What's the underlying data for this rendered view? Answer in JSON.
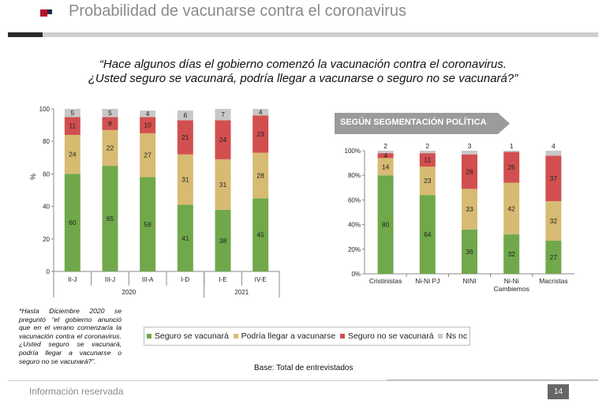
{
  "header": {
    "title": "Probabilidad de vacunarse contra el coronavirus"
  },
  "question": {
    "line1": "“Hace algunos días el gobierno comenzó la vacunación contra el coronavirus.",
    "line2": "¿Usted seguro se vacunará, podría llegar a vacunarse o seguro no se vacunará?”"
  },
  "segment_label": "SEGÚN SEGMENTACIÓN POLÍTICA",
  "footnote": "*Hasta Diciembre 2020 se preguntó “el gobierno anunció que en el verano comenzaría la vacunación contra el coronavirus. ¿Usted seguro se vacunará, podría llegar a vacunarse o seguro no se vacunará?”.",
  "legend": {
    "items": [
      {
        "label": "Seguro se vacunará",
        "color": "#70a84b"
      },
      {
        "label": "Podría llegar a vacunarse",
        "color": "#d7bb73"
      },
      {
        "label": "Seguro no se vacunará",
        "color": "#d24f4f"
      },
      {
        "label": "Ns nc",
        "color": "#c8c8c8"
      }
    ]
  },
  "base_note": "Base: Total de entrevistados",
  "footer": {
    "text": "Información reservada",
    "page_number": "14"
  },
  "colors": {
    "seguro": "#70a84b",
    "podria": "#d7bb73",
    "no": "#d24f4f",
    "nsnc": "#c8c8c8",
    "brand": "#b8102c"
  },
  "chart_data": [
    {
      "type": "bar",
      "stacked": true,
      "title": "",
      "ylabel": "%",
      "ylim": [
        0,
        100
      ],
      "yticks": [
        0,
        20,
        40,
        60,
        80,
        100
      ],
      "categories": [
        "II-J",
        "III-J",
        "III-A",
        "I-D",
        "I-E",
        "IV-E"
      ],
      "groups": [
        {
          "label": "2020",
          "categories": [
            "II-J",
            "III-J",
            "III-A",
            "I-D"
          ]
        },
        {
          "label": "2021",
          "categories": [
            "I-E",
            "IV-E"
          ]
        }
      ],
      "series": [
        {
          "name": "Seguro se vacunará",
          "values": [
            60,
            65,
            58,
            41,
            38,
            45
          ]
        },
        {
          "name": "Podría llegar a vacunarse",
          "values": [
            24,
            22,
            27,
            31,
            31,
            28
          ]
        },
        {
          "name": "Seguro no se vacunará",
          "values": [
            11,
            8,
            10,
            21,
            24,
            23
          ]
        },
        {
          "name": "Ns nc",
          "values": [
            5,
            5,
            4,
            6,
            7,
            4
          ]
        }
      ],
      "grid": false,
      "legend": "bottom"
    },
    {
      "type": "bar",
      "stacked": true,
      "title": "",
      "ylabel": "",
      "ylim": [
        0,
        100
      ],
      "yticks": [
        "0%",
        "20%",
        "40%",
        "60%",
        "80%",
        "100%"
      ],
      "categories": [
        "Cristinistas",
        "Ni-Ni PJ",
        "NINI",
        "Ni-Ni Cambiemos",
        "Macristas"
      ],
      "series": [
        {
          "name": "Seguro se vacunará",
          "values": [
            80,
            64,
            36,
            32,
            27
          ]
        },
        {
          "name": "Podría llegar a vacunarse",
          "values": [
            14,
            23,
            33,
            42,
            32
          ]
        },
        {
          "name": "Seguro no se vacunará",
          "values": [
            4,
            11,
            28,
            25,
            37
          ]
        },
        {
          "name": "Ns nc",
          "values": [
            2,
            2,
            3,
            1,
            4
          ]
        }
      ],
      "grid": false,
      "legend": "bottom"
    }
  ]
}
